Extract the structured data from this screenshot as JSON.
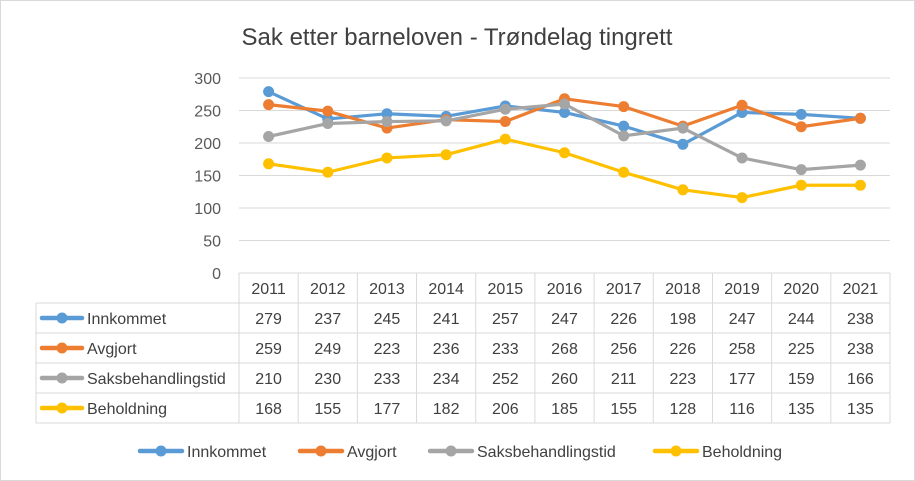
{
  "chart_data": {
    "type": "line",
    "title": "Sak etter barneloven - Trøndelag tingrett",
    "categories": [
      "2011",
      "2012",
      "2013",
      "2014",
      "2015",
      "2016",
      "2017",
      "2018",
      "2019",
      "2020",
      "2021"
    ],
    "ylim": [
      0,
      300
    ],
    "yticks": [
      0,
      50,
      100,
      150,
      200,
      250,
      300
    ],
    "grid": true,
    "data_table": true,
    "legend_position": "bottom",
    "series": [
      {
        "name": "Innkommet",
        "color": "#5B9BD5",
        "values": [
          279,
          237,
          245,
          241,
          257,
          247,
          226,
          198,
          247,
          244,
          238
        ]
      },
      {
        "name": "Avgjort",
        "color": "#ED7D31",
        "values": [
          259,
          249,
          223,
          236,
          233,
          268,
          256,
          226,
          258,
          225,
          238
        ]
      },
      {
        "name": "Saksbehandlingstid",
        "color": "#A5A5A5",
        "values": [
          210,
          230,
          233,
          234,
          252,
          260,
          211,
          223,
          177,
          159,
          166
        ]
      },
      {
        "name": "Beholdning",
        "color": "#FFC000",
        "values": [
          168,
          155,
          177,
          182,
          206,
          185,
          155,
          128,
          116,
          135,
          135
        ]
      }
    ]
  }
}
